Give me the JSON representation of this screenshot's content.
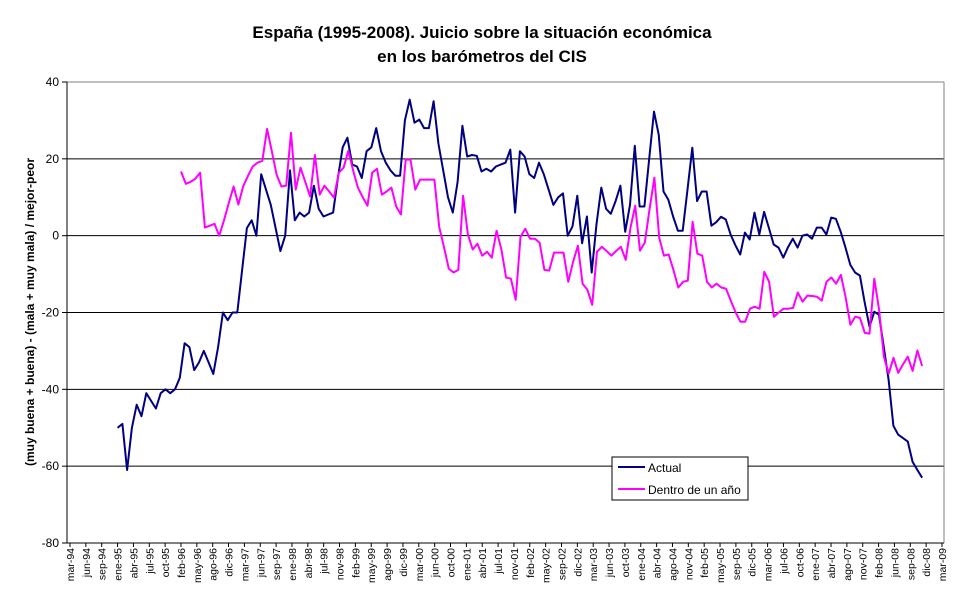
{
  "chart_data": {
    "type": "line",
    "title_lines": [
      "España (1995-2008). Juicio sobre la situación económica",
      "en los barómetros del CIS"
    ],
    "xlabel": "",
    "ylabel": "(muy buena + buena) - (mala + muy mala) / mejor-peor",
    "ylim": [
      -80,
      40
    ],
    "yticks": [
      40,
      20,
      0,
      -20,
      -40,
      -60,
      -80
    ],
    "grid": true,
    "legend_placement": "bottom-right",
    "x_tick_labels": [
      "mar-94",
      "jun-94",
      "sep-94",
      "ene-95",
      "abr-95",
      "jul-95",
      "oct-95",
      "feb-96",
      "may-96",
      "ago-96",
      "dic-96",
      "mar-97",
      "jun-97",
      "sep-97",
      "ene-98",
      "abr-98",
      "jul-98",
      "nov-98",
      "feb-99",
      "may-99",
      "ago-99",
      "dic-99",
      "mar-00",
      "jun-00",
      "oct-00",
      "ene-01",
      "abr-01",
      "jul-01",
      "nov-01",
      "feb-02",
      "may-02",
      "sep-02",
      "dic-02",
      "mar-03",
      "jun-03",
      "oct-03",
      "ene-04",
      "abr-04",
      "ago-04",
      "nov-04",
      "feb-05",
      "may-05",
      "sep-05",
      "dic-05",
      "mar-06",
      "jul-06",
      "oct-06",
      "ene-07",
      "abr-07",
      "ago-07",
      "nov-07",
      "feb-08",
      "jun-08",
      "sep-08",
      "dic-08",
      "mar-09"
    ],
    "series": [
      {
        "name": "Actual",
        "color": "#000080",
        "start": "ene-95",
        "end": "dic-08",
        "values": [
          -50,
          -49,
          -61,
          -50,
          -44,
          -47,
          -41,
          -43,
          -45,
          -41,
          -40,
          -41,
          -40,
          -37,
          -28,
          -29,
          -35,
          -33,
          -30,
          -33,
          -36,
          -29,
          -20,
          -22,
          -20,
          -20,
          -9,
          2,
          4,
          0,
          16,
          12,
          8,
          2,
          -4,
          0,
          17,
          4,
          6,
          5,
          6,
          13,
          7,
          5,
          5.5,
          6,
          15,
          23,
          25.5,
          18.5,
          18,
          15,
          22,
          23,
          28,
          22,
          19,
          17,
          15.6,
          15.6,
          30,
          35.4,
          29.4,
          30.2,
          28,
          28,
          35,
          24,
          17,
          10,
          6,
          14,
          28.6,
          20.6,
          21,
          20.8,
          16.7,
          17.4,
          16.7,
          18,
          18.5,
          19,
          22.4,
          6,
          22,
          20.6,
          16,
          15,
          19,
          16,
          12,
          8,
          10,
          11,
          0,
          2.4,
          10.4,
          -2,
          5,
          -9.6,
          3,
          12.5,
          7,
          5.7,
          9,
          13,
          1,
          8,
          23.4,
          7.6,
          7.6,
          20,
          32.3,
          26.3,
          11.5,
          9.4,
          5,
          1.3,
          1.3,
          12,
          22.9,
          9,
          11.5,
          11.5,
          2.6,
          3.5,
          4.9,
          4.2,
          0.3,
          -2.5,
          -4.9,
          0.8,
          -1,
          6,
          0.3,
          6.2,
          2,
          -2.3,
          -3.1,
          -5.7,
          -3,
          -0.8,
          -3.1,
          0,
          0.3,
          -0.8,
          2.1,
          2.1,
          0.3,
          4.7,
          4.4,
          1,
          -3.1,
          -7.6,
          -9.6,
          -10.4,
          -17.4,
          -23.7,
          -19.8,
          -20.6,
          -29,
          -37.5,
          -49.5,
          -51.8,
          -52.7,
          -53.6,
          -58.9,
          -61,
          -63
        ]
      },
      {
        "name": "Dentro de un año",
        "color": "#FF00FF",
        "start": "feb-96",
        "end": "dic-08",
        "values": [
          16.7,
          13.5,
          14,
          14.8,
          16.4,
          2.1,
          2.6,
          3.1,
          0,
          4,
          8.5,
          12.8,
          8.1,
          12.8,
          15.5,
          18,
          19,
          19.5,
          27.8,
          22,
          15.9,
          12.8,
          13,
          26.8,
          12,
          17.7,
          14,
          10.2,
          21,
          10.7,
          13,
          11.5,
          9.9,
          16.4,
          17.7,
          22.1,
          17,
          12.5,
          10,
          7.8,
          16.4,
          17.4,
          10.7,
          11.5,
          12.5,
          7.6,
          5.5,
          19.8,
          19.8,
          12,
          14.6,
          14.6,
          14.6,
          14.6,
          2.3,
          -3,
          -8.6,
          -9.6,
          -8.9,
          10.4,
          0.3,
          -3.6,
          -2.1,
          -5.2,
          -4.2,
          -5.7,
          1.3,
          -3.6,
          -10.9,
          -11.2,
          -16.7,
          -0.3,
          1.8,
          -0.8,
          -0.8,
          -1.8,
          -8.9,
          -9.1,
          -4.4,
          -4.4,
          -4.4,
          -12,
          -6.8,
          -2.6,
          -12.5,
          -14.1,
          -18,
          -4.2,
          -2.9,
          -4,
          -5.2,
          -4,
          -2.9,
          -6.3,
          2.1,
          7.8,
          -3.9,
          -1.8,
          7,
          15.1,
          -0.5,
          -5.2,
          -4.9,
          -9,
          -13.5,
          -12,
          -11.7,
          3.6,
          -4.7,
          -5.2,
          -12,
          -13.5,
          -12.5,
          -13.5,
          -13.8,
          -17,
          -20,
          -22.4,
          -22.4,
          -19,
          -18.5,
          -19,
          -9.4,
          -12,
          -21.1,
          -20,
          -19,
          -19,
          -18.8,
          -14.8,
          -17.2,
          -15.6,
          -15.7,
          -15.9,
          -16.9,
          -12,
          -10.9,
          -12.5,
          -10.2,
          -16,
          -23.2,
          -21.1,
          -21.4,
          -25.3,
          -25.5,
          -11.2,
          -19.3,
          -31.5,
          -35.9,
          -31.8,
          -35.7,
          -33.5,
          -31.5,
          -35.2,
          -29.9,
          -33.9
        ]
      }
    ]
  }
}
